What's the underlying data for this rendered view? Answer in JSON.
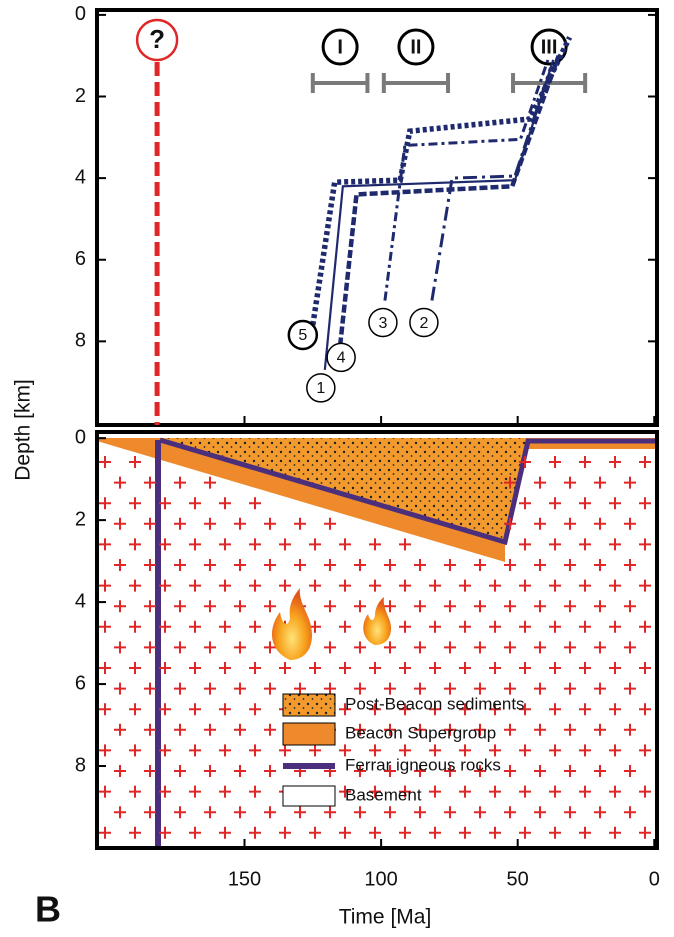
{
  "panel_label": "B",
  "chart_data": [
    {
      "type": "line",
      "ylabel": "Depth [km]",
      "xlim": [
        204,
        -1
      ],
      "ylim": [
        -0.12,
        10.05
      ],
      "yticks": [
        0,
        2,
        4,
        6,
        8
      ],
      "series": [
        {
          "name": "1",
          "color": "#1f2a6e",
          "linestyle": "solid",
          "x": [
            120.6,
            114,
            51,
            37
          ],
          "values": [
            8.7,
            4.2,
            4.05,
            1.1
          ]
        },
        {
          "name": "2",
          "color": "#1f2a6e",
          "linestyle": "longdashdot",
          "x": [
            81.4,
            74,
            51,
            38
          ],
          "values": [
            7.0,
            4.0,
            3.95,
            1.3
          ]
        },
        {
          "name": "3",
          "color": "#1f2a6e",
          "linestyle": "dashdot",
          "x": [
            98.6,
            91.3,
            49,
            38.9
          ],
          "values": [
            7.0,
            3.2,
            3.05,
            1.1
          ]
        },
        {
          "name": "4",
          "color": "#1f2a6e",
          "linestyle": "dashed",
          "x": [
            115,
            109,
            52,
            35
          ],
          "values": [
            8.1,
            4.4,
            4.2,
            1.0
          ]
        },
        {
          "name": "5",
          "color": "#1f2a6e",
          "linestyle": "dotted",
          "x": [
            125,
            117,
            93,
            89.5,
            45.5,
            31
          ],
          "values": [
            7.6,
            4.1,
            4.05,
            2.85,
            2.55,
            0.55
          ]
        }
      ],
      "intervals": [
        {
          "label": "I",
          "start": 125,
          "end": 105
        },
        {
          "label": "II",
          "start": 99,
          "end": 75.5
        },
        {
          "label": "III",
          "start": 51.7,
          "end": 25.3
        }
      ],
      "annotations": [
        {
          "text": "?",
          "x": 182,
          "color": "#e02626"
        }
      ]
    },
    {
      "type": "section",
      "xlabel": "Time [Ma]",
      "xlim": [
        204,
        -1
      ],
      "ylim": [
        -0.15,
        10
      ],
      "xticks": [
        150,
        100,
        50,
        0
      ],
      "yticks": [
        0,
        2,
        4,
        6,
        8
      ],
      "legend": [
        "Post-Beacon sediments",
        "Beacon Supergroup",
        "Ferrar igneous rocks",
        "Basement"
      ]
    }
  ]
}
